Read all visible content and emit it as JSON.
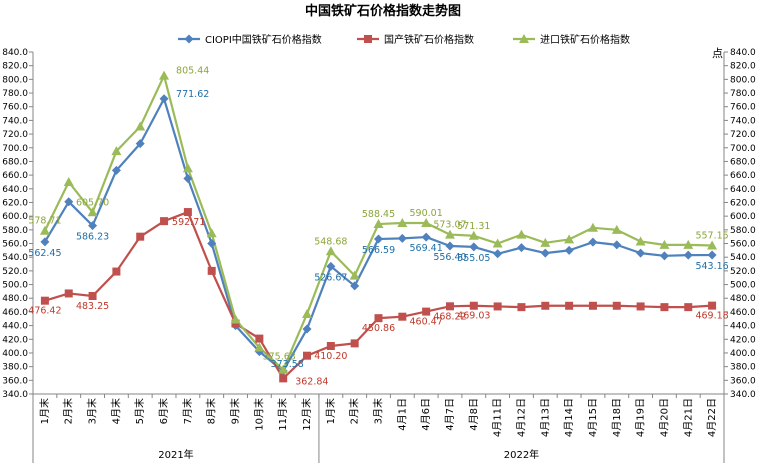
{
  "chart_data": {
    "type": "line",
    "title": "中国铁矿石价格指数走势图",
    "y_unit_label": "点",
    "ylim": [
      340,
      840
    ],
    "y_step": 20,
    "grid": false,
    "legend_position": "top",
    "categories": [
      "1月末",
      "2月末",
      "3月末",
      "4月末",
      "5月末",
      "6月末",
      "7月末",
      "8月末",
      "9月末",
      "10月末",
      "11月末",
      "12月末",
      "1月末",
      "2月末",
      "3月末",
      "4月1日",
      "4月6日",
      "4月7日",
      "4月8日",
      "4月11日",
      "4月12日",
      "4月13日",
      "4月14日",
      "4月15日",
      "4月18日",
      "4月19日",
      "4月20日",
      "4月21日",
      "4月22日"
    ],
    "year_groups": [
      {
        "label": "2021年",
        "count": 12
      },
      {
        "label": "2022年",
        "count": 17
      }
    ],
    "series": [
      {
        "name": "CIOPI中国铁矿石价格指数",
        "color": "#4f81bd",
        "label_color": "#1f6fa8",
        "marker": "diamond",
        "values": [
          562.45,
          621,
          586.23,
          667,
          706,
          771.62,
          655,
          560,
          440,
          402,
          373.58,
          435,
          526.67,
          498,
          566.59,
          567.5,
          569.41,
          556.4,
          555.05,
          545,
          554,
          546,
          550,
          562,
          558,
          546,
          542,
          543,
          543.16
        ],
        "labels": {
          "0": "562.45",
          "2": "586.23",
          "5": "771.62",
          "10": "373.58",
          "12": "526.67",
          "14": "566.59",
          "16": "569.41",
          "17": "556.40",
          "18": "555.05",
          "28": "543.16"
        }
      },
      {
        "name": "国产铁矿石价格指数",
        "color": "#c0504d",
        "label_color": "#c0392b",
        "marker": "square",
        "values": [
          476.42,
          487,
          483.25,
          519,
          570,
          592.71,
          606,
          520,
          443,
          421,
          362.84,
          396,
          410.2,
          414,
          450.86,
          453,
          460.47,
          468.22,
          469.03,
          468,
          467,
          469,
          469,
          469,
          469,
          468,
          467,
          467,
          469.18
        ],
        "labels": {
          "0": "476.42",
          "2": "483.25",
          "5": "592.71",
          "10": "362.84",
          "12": "410.20",
          "14": "450.86",
          "16": "460.47",
          "17": "468.22",
          "18": "469.03",
          "28": "469.18"
        }
      },
      {
        "name": "进口铁矿石价格指数",
        "color": "#9bbb59",
        "label_color": "#8aa63a",
        "marker": "triangle",
        "values": [
          578.71,
          650,
          605.7,
          695,
          731,
          805.44,
          670,
          575,
          449,
          408,
          375.63,
          457,
          548.68,
          513,
          588.45,
          590,
          590.01,
          573.07,
          571.31,
          560,
          573,
          561,
          566,
          583,
          580,
          563,
          558,
          558,
          557.15
        ],
        "labels": {
          "0": "578.71",
          "2": "605.70",
          "5": "805.44",
          "10": "375.63",
          "12": "548.68",
          "14": "588.45",
          "16": "590.01",
          "17": "573.07",
          "18": "571.31",
          "28": "557.15"
        }
      }
    ]
  }
}
